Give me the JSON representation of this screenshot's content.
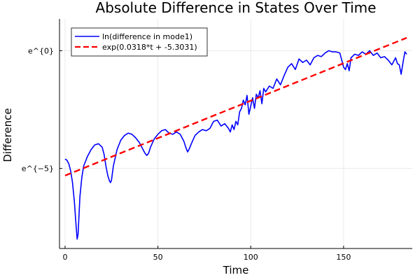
{
  "chart_data": {
    "type": "line",
    "title": "Absolute Difference in States Over Time",
    "xlabel": "Time",
    "ylabel": "Difference",
    "xlim": [
      -3,
      187
    ],
    "ylim": [
      -8.4,
      1.35
    ],
    "y_scale": "log",
    "grid": true,
    "legend_position": "top-left",
    "x_ticks": [
      0,
      50,
      100,
      150
    ],
    "x_tick_labels": [
      "0",
      "50",
      "100",
      "150"
    ],
    "y_ticks": [
      0,
      -5
    ],
    "y_tick_labels": [
      "e^{0}",
      "e^{−5}"
    ],
    "series": [
      {
        "name": "ln(difference in mode1)",
        "color": "#0000ff",
        "style": "solid",
        "x": [
          0,
          1,
          2,
          3,
          4,
          5,
          6,
          6.5,
          7,
          7.5,
          8,
          9,
          10,
          12,
          14,
          16,
          18,
          20,
          21,
          22,
          23,
          24,
          24.5,
          25,
          26,
          28,
          30,
          32,
          34,
          36,
          38,
          40,
          42,
          43,
          44,
          45,
          46,
          48,
          50,
          52,
          54,
          56,
          58,
          60,
          62,
          63,
          64,
          65,
          66,
          67,
          68,
          70,
          72,
          74,
          76,
          78,
          80,
          82,
          84,
          86,
          88,
          89,
          90,
          91,
          92,
          93,
          94,
          95,
          96,
          97,
          98,
          99,
          100,
          101,
          102,
          103,
          104,
          105,
          106,
          107,
          108,
          110,
          112,
          114,
          116,
          118,
          120,
          122,
          124,
          126,
          128,
          130,
          132,
          134,
          136,
          138,
          140,
          142,
          144,
          146,
          148,
          150,
          151,
          152,
          153,
          154,
          156,
          158,
          160,
          162,
          164,
          166,
          168,
          170,
          172,
          174,
          176,
          178,
          179,
          180,
          181,
          182,
          183,
          184
        ],
        "y": [
          -4.6,
          -4.65,
          -4.8,
          -5.1,
          -5.6,
          -6.4,
          -7.5,
          -8.0,
          -7.8,
          -7.0,
          -6.2,
          -5.4,
          -4.9,
          -4.5,
          -4.2,
          -4.0,
          -3.95,
          -4.1,
          -4.4,
          -4.9,
          -5.3,
          -5.55,
          -5.6,
          -5.5,
          -4.9,
          -4.2,
          -3.8,
          -3.6,
          -3.5,
          -3.55,
          -3.7,
          -3.9,
          -4.2,
          -4.35,
          -4.45,
          -4.35,
          -4.1,
          -3.75,
          -3.55,
          -3.4,
          -3.35,
          -3.5,
          -3.55,
          -3.45,
          -3.55,
          -3.7,
          -3.85,
          -4.1,
          -4.3,
          -4.15,
          -3.95,
          -3.6,
          -3.45,
          -3.35,
          -3.4,
          -3.3,
          -3.0,
          -2.95,
          -3.2,
          -3.1,
          -3.3,
          -3.45,
          -3.15,
          -3.35,
          -3.0,
          -3.15,
          -2.6,
          -2.45,
          -2.1,
          -2.3,
          -1.9,
          -2.7,
          -2.35,
          -2.0,
          -2.45,
          -1.85,
          -2.0,
          -1.7,
          -2.25,
          -1.6,
          -1.75,
          -1.5,
          -1.6,
          -1.2,
          -1.45,
          -1.05,
          -0.7,
          -0.55,
          -0.8,
          -0.35,
          -0.5,
          -0.4,
          -0.6,
          -0.3,
          -0.2,
          -0.25,
          -0.1,
          0.0,
          -0.05,
          -0.05,
          -0.1,
          -0.7,
          -0.8,
          -0.55,
          -0.85,
          -0.3,
          -0.15,
          -0.2,
          -0.05,
          -0.15,
          0.0,
          -0.2,
          -0.1,
          -0.3,
          -0.25,
          -0.4,
          -0.6,
          -0.3,
          -0.55,
          -0.6,
          -1.0,
          -0.5,
          -0.05,
          -0.15
        ]
      },
      {
        "name": "exp(0.0318*t + -5.3031)",
        "color": "#ff0000",
        "style": "dashed",
        "x": [
          0,
          184
        ],
        "y": [
          -5.3031,
          0.5481
        ]
      }
    ]
  }
}
